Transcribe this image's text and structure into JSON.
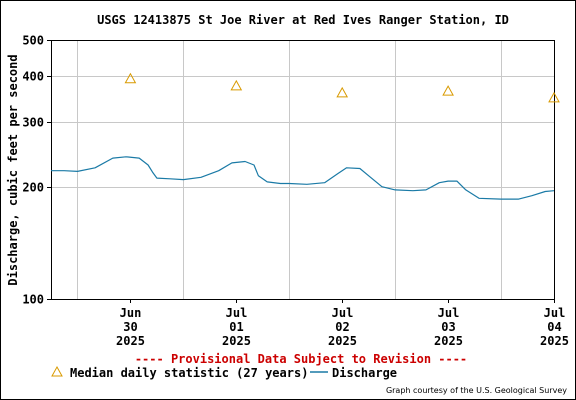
{
  "chart_data": {
    "type": "line",
    "title": "USGS 12413875 St Joe River at Red Ives Ranger Station, ID",
    "ylabel": "Discharge, cubic feet per second",
    "y_scale": "log",
    "ylim": [
      100,
      500
    ],
    "y_ticks": [
      100,
      200,
      300,
      400,
      500
    ],
    "y_tick_labels": [
      "100",
      "200",
      "300",
      "400",
      "500"
    ],
    "xlim": [
      "2025-06-29T18:00",
      "2025-07-04T12:00"
    ],
    "x_ticks": [
      "2025-06-30T12:00",
      "2025-07-01T12:00",
      "2025-07-02T12:00",
      "2025-07-03T12:00",
      "2025-07-04T12:00"
    ],
    "x_tick_labels": [
      {
        "month": "Jun",
        "day": "30",
        "year": "2025"
      },
      {
        "month": "Jul",
        "day": "01",
        "year": "2025"
      },
      {
        "month": "Jul",
        "day": "02",
        "year": "2025"
      },
      {
        "month": "Jul",
        "day": "03",
        "year": "2025"
      },
      {
        "month": "Jul",
        "day": "04",
        "year": "2025"
      }
    ],
    "x_gridlines": [
      "2025-06-30T00:00",
      "2025-07-01T00:00",
      "2025-07-02T00:00",
      "2025-07-03T00:00",
      "2025-07-04T00:00"
    ],
    "grid": true,
    "legend_placement": "bottom-left",
    "provisional_note": "---- Provisional Data Subject to Revision ----",
    "credit": "Graph courtesy of the U.S. Geological Survey",
    "colors": {
      "discharge": "#1a7aa6",
      "median": "#d99a00",
      "provisional": "#cc0000",
      "grid": "#c8c8c8"
    },
    "series": [
      {
        "name": "Median daily statistic (27 years)",
        "marker": "triangle",
        "x": [
          "2025-06-30T12:00",
          "2025-07-01T12:00",
          "2025-07-02T12:00",
          "2025-07-03T12:00",
          "2025-07-04T12:00"
        ],
        "values": [
          393,
          376,
          360,
          364,
          349
        ]
      },
      {
        "name": "Discharge",
        "marker": "line",
        "x": [
          "2025-06-29T18:00",
          "2025-06-29T21:00",
          "2025-06-30T00:00",
          "2025-06-30T04:00",
          "2025-06-30T08:00",
          "2025-06-30T11:00",
          "2025-06-30T14:00",
          "2025-06-30T16:00",
          "2025-06-30T17:00",
          "2025-06-30T18:00",
          "2025-06-30T21:00",
          "2025-07-01T00:00",
          "2025-07-01T04:00",
          "2025-07-01T08:00",
          "2025-07-01T11:00",
          "2025-07-01T14:00",
          "2025-07-01T16:00",
          "2025-07-01T17:00",
          "2025-07-01T19:00",
          "2025-07-01T22:00",
          "2025-07-02T00:00",
          "2025-07-02T04:00",
          "2025-07-02T08:00",
          "2025-07-02T11:00",
          "2025-07-02T13:00",
          "2025-07-02T16:00",
          "2025-07-02T18:00",
          "2025-07-02T21:00",
          "2025-07-03T00:00",
          "2025-07-03T04:00",
          "2025-07-03T07:00",
          "2025-07-03T10:00",
          "2025-07-03T12:00",
          "2025-07-03T14:00",
          "2025-07-03T16:00",
          "2025-07-03T19:00",
          "2025-07-04T00:00",
          "2025-07-04T04:00",
          "2025-07-04T07:00",
          "2025-07-04T10:00",
          "2025-07-04T12:00"
        ],
        "values": [
          222,
          222,
          221,
          226,
          240,
          242,
          240,
          230,
          220,
          212,
          211,
          210,
          213,
          222,
          233,
          235,
          230,
          215,
          207,
          205,
          205,
          204,
          206,
          218,
          226,
          225,
          215,
          201,
          197,
          196,
          197,
          206,
          208,
          208,
          197,
          187,
          186,
          186,
          190,
          195,
          196
        ]
      }
    ]
  }
}
